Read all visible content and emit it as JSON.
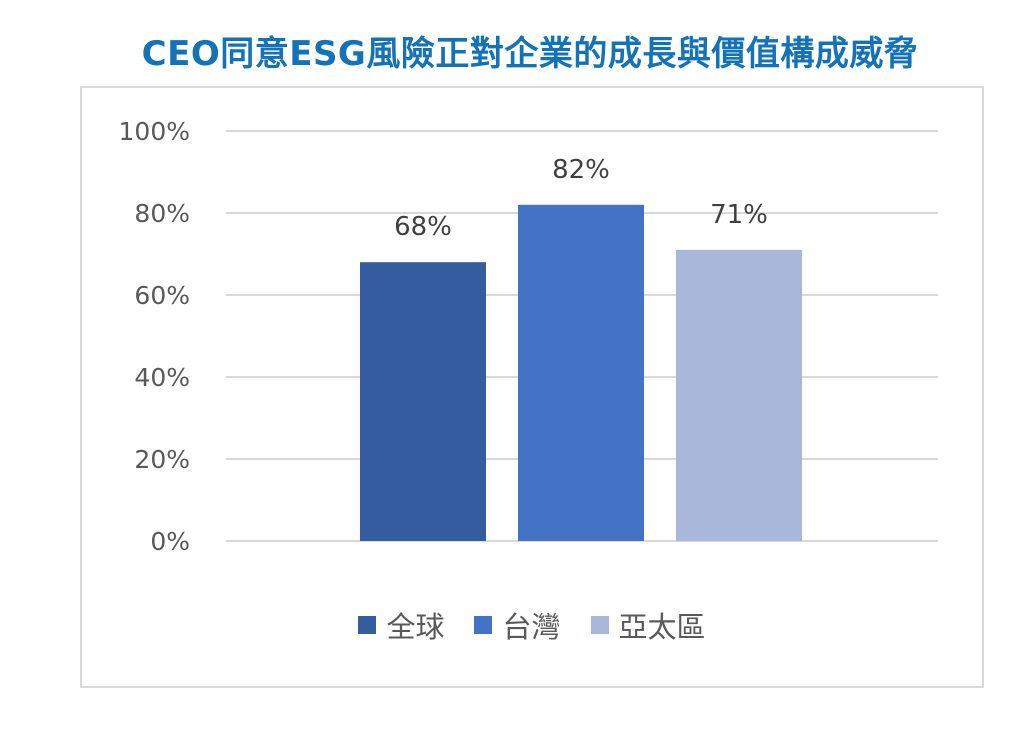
{
  "chart_data": {
    "type": "bar",
    "title": "CEO同意ESG風險正對企業的成長與價值構成威脅",
    "categories": [
      "全球",
      "台灣",
      "亞太區"
    ],
    "values": [
      68,
      82,
      71
    ],
    "data_labels": [
      "68%",
      "82%",
      "71%"
    ],
    "colors": [
      "#345c9f",
      "#4472c4",
      "#a9b7da"
    ],
    "ylim": [
      0,
      100
    ],
    "yticks": [
      0,
      20,
      40,
      60,
      80,
      100
    ],
    "ytick_labels": [
      "0%",
      "20%",
      "40%",
      "60%",
      "80%",
      "100%"
    ],
    "xlabel": "",
    "ylabel": "",
    "grid": true,
    "legend_position": "bottom",
    "legend": [
      {
        "label": "全球",
        "color": "#345c9f"
      },
      {
        "label": "台灣",
        "color": "#4472c4"
      },
      {
        "label": "亞太區",
        "color": "#a9b7da"
      }
    ]
  }
}
